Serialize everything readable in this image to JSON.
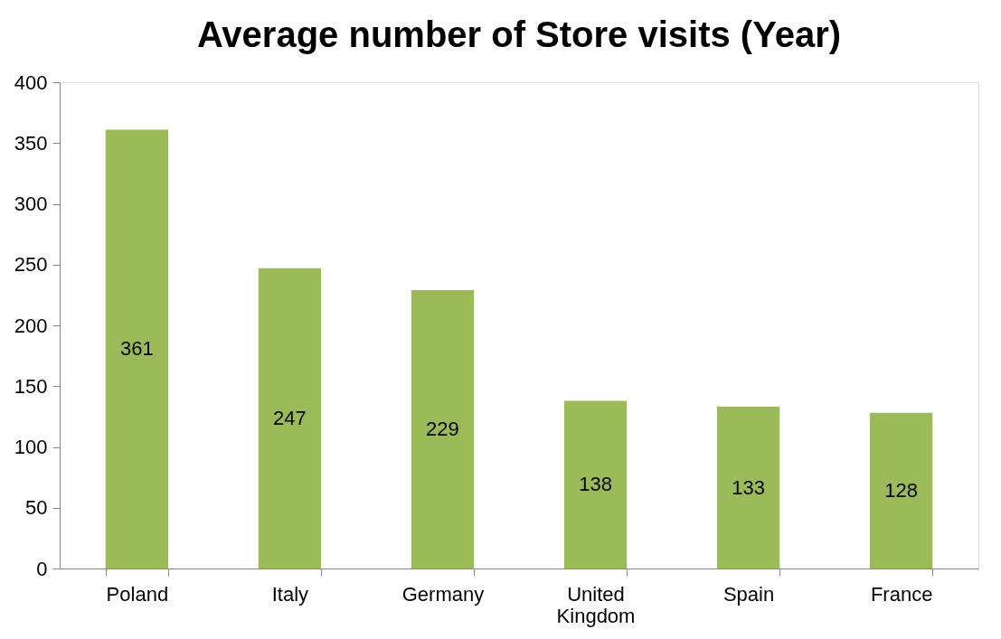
{
  "chart_data": {
    "type": "bar",
    "title": "Average number of Store visits (Year)",
    "categories": [
      "Poland",
      "Italy",
      "Germany",
      "United Kingdom",
      "Spain",
      "France"
    ],
    "values": [
      361,
      247,
      229,
      138,
      133,
      128
    ],
    "color": "#9bbb59",
    "ylim": [
      0,
      400
    ],
    "yticks": [
      0,
      50,
      100,
      150,
      200,
      250,
      300,
      350,
      400
    ],
    "grid": false,
    "data_labels": true
  }
}
